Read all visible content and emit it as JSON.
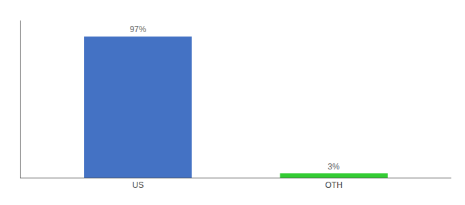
{
  "chart_data": {
    "type": "bar",
    "categories": [
      "US",
      "OTH"
    ],
    "values": [
      97,
      3
    ],
    "value_labels": [
      "97%",
      "3%"
    ],
    "data_labels": true,
    "colors": [
      "#4472c4",
      "#33cc33"
    ],
    "ylim": [
      0,
      108
    ],
    "grid": false,
    "tick_labels": "x"
  }
}
